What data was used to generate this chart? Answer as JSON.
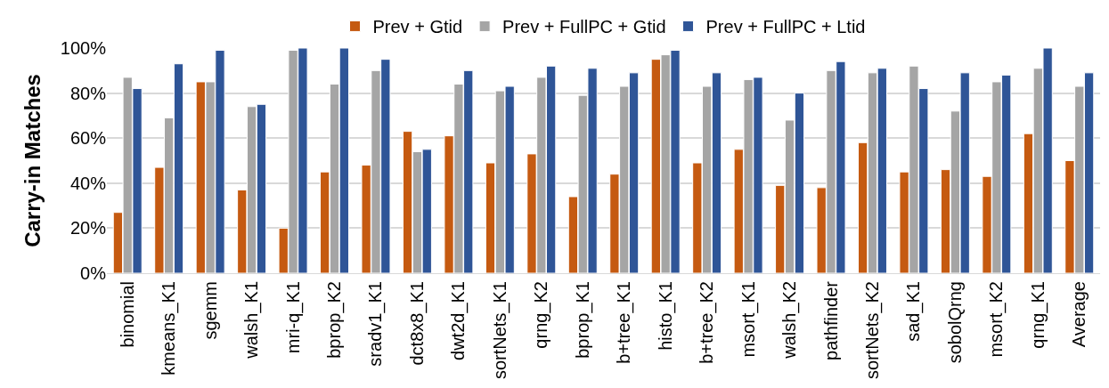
{
  "chart_data": {
    "type": "bar",
    "ylabel": "Carry-in Matches",
    "categories": [
      "binomial",
      "kmeans_K1",
      "sgemm",
      "walsh_K1",
      "mri-q_K1",
      "bprop_K2",
      "sradv1_K1",
      "dct8x8_K1",
      "dwt2d_K1",
      "sortNets_K1",
      "qrng_K2",
      "bprop_K1",
      "b+tree_K1",
      "histo_K1",
      "b+tree_K2",
      "msort_K1",
      "walsh_K2",
      "pathfinder",
      "sortNets_K2",
      "sad_K1",
      "sobolQrng",
      "msort_K2",
      "qrng_K1",
      "Average"
    ],
    "series": [
      {
        "name": "Prev + Gtid",
        "color": "#c55a11",
        "values": [
          27,
          47,
          85,
          37,
          20,
          45,
          48,
          63,
          61,
          49,
          53,
          34,
          44,
          95,
          49,
          55,
          39,
          38,
          58,
          45,
          46,
          43,
          62,
          50
        ]
      },
      {
        "name": "Prev + FullPC + Gtid",
        "color": "#a5a5a5",
        "values": [
          87,
          69,
          85,
          74,
          99,
          84,
          90,
          54,
          84,
          81,
          87,
          79,
          83,
          97,
          83,
          86,
          68,
          90,
          89,
          92,
          72,
          85,
          91,
          83
        ]
      },
      {
        "name": "Prev + FullPC + Ltid",
        "color": "#2f5597",
        "values": [
          82,
          93,
          99,
          75,
          100,
          100,
          95,
          55,
          90,
          83,
          92,
          91,
          89,
          99,
          89,
          87,
          80,
          94,
          91,
          82,
          89,
          88,
          100,
          89
        ]
      }
    ],
    "ylim": [
      0,
      100
    ],
    "yticks": [
      {
        "value": 0,
        "label": "0%"
      },
      {
        "value": 20,
        "label": "20%"
      },
      {
        "value": 40,
        "label": "40%"
      },
      {
        "value": 60,
        "label": "60%"
      },
      {
        "value": 80,
        "label": "80%"
      },
      {
        "value": 100,
        "label": "100%"
      }
    ],
    "grid": "y",
    "legend": "top"
  }
}
